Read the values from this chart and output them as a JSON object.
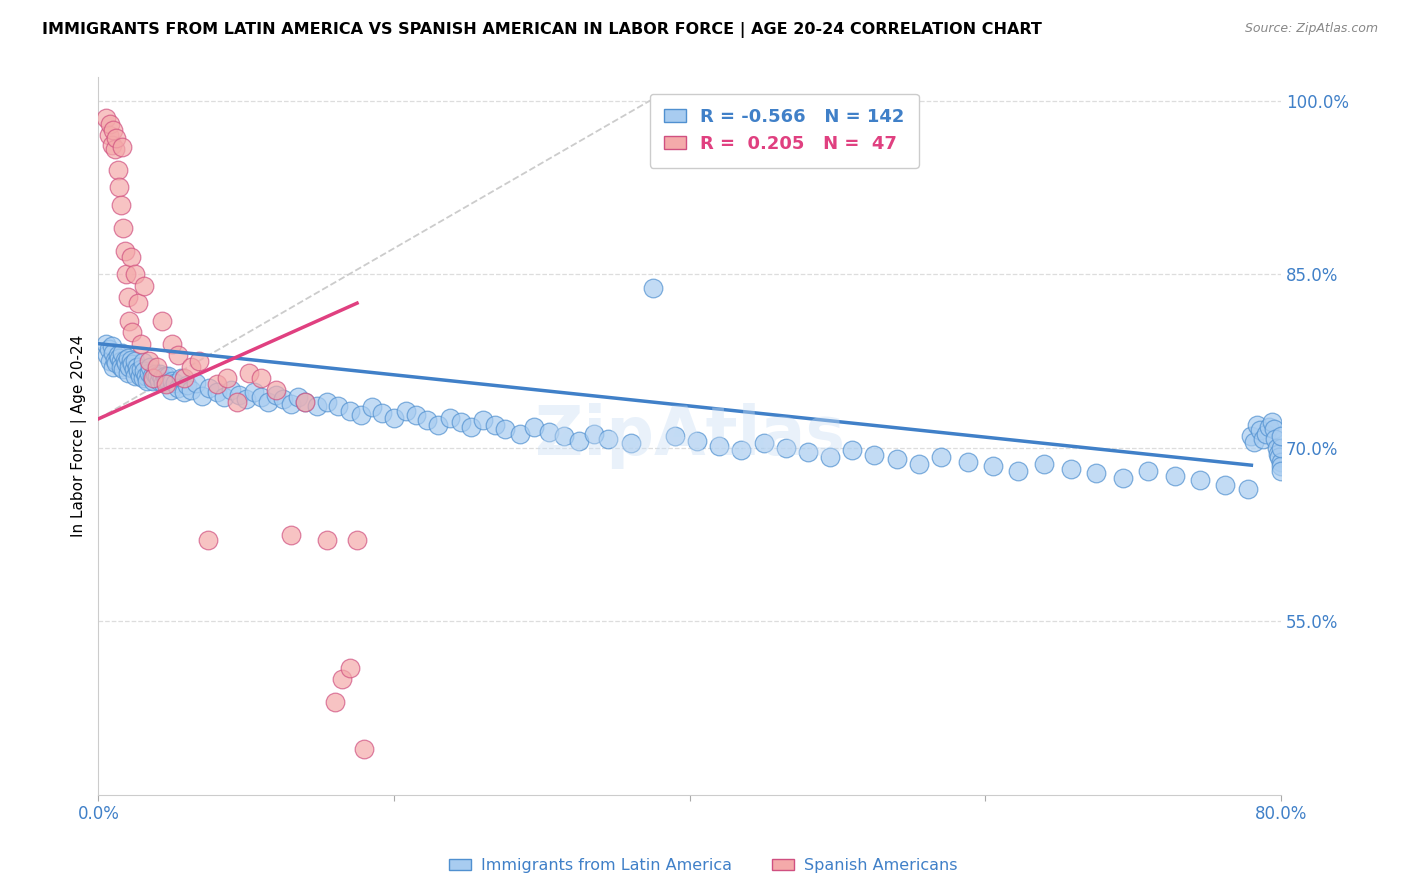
{
  "title": "IMMIGRANTS FROM LATIN AMERICA VS SPANISH AMERICAN IN LABOR FORCE | AGE 20-24 CORRELATION CHART",
  "source": "Source: ZipAtlas.com",
  "ylabel": "In Labor Force | Age 20-24",
  "xmin": 0.0,
  "xmax": 0.8,
  "ymin": 0.4,
  "ymax": 1.02,
  "yticks": [
    0.55,
    0.7,
    0.85,
    1.0
  ],
  "ytick_labels": [
    "55.0%",
    "70.0%",
    "85.0%",
    "100.0%"
  ],
  "xticks": [
    0.0,
    0.2,
    0.4,
    0.6,
    0.8
  ],
  "xtick_labels": [
    "0.0%",
    "",
    "",
    "",
    "80.0%"
  ],
  "legend_blue_r": "-0.566",
  "legend_blue_n": "142",
  "legend_pink_r": "0.205",
  "legend_pink_n": "47",
  "blue_color": "#A8CCF0",
  "pink_color": "#F4AAAA",
  "line_blue": "#4080C8",
  "line_pink": "#E04080",
  "blue_edge": "#5090D0",
  "pink_edge": "#D05080",
  "blue_regression": [
    0.0,
    0.78,
    0.79,
    0.685
  ],
  "pink_regression": [
    0.0,
    0.175,
    0.725,
    0.825
  ],
  "diag_line": [
    0.0,
    0.38,
    0.725,
    1.005
  ],
  "blue_x": [
    0.005,
    0.006,
    0.007,
    0.008,
    0.009,
    0.01,
    0.01,
    0.011,
    0.012,
    0.013,
    0.014,
    0.015,
    0.015,
    0.016,
    0.017,
    0.018,
    0.019,
    0.02,
    0.02,
    0.021,
    0.022,
    0.023,
    0.024,
    0.025,
    0.025,
    0.026,
    0.027,
    0.028,
    0.029,
    0.03,
    0.03,
    0.031,
    0.032,
    0.033,
    0.034,
    0.035,
    0.036,
    0.037,
    0.038,
    0.04,
    0.041,
    0.042,
    0.043,
    0.044,
    0.045,
    0.046,
    0.047,
    0.048,
    0.049,
    0.05,
    0.052,
    0.054,
    0.056,
    0.058,
    0.06,
    0.063,
    0.066,
    0.07,
    0.075,
    0.08,
    0.085,
    0.09,
    0.095,
    0.1,
    0.105,
    0.11,
    0.115,
    0.12,
    0.125,
    0.13,
    0.135,
    0.14,
    0.148,
    0.155,
    0.162,
    0.17,
    0.178,
    0.185,
    0.192,
    0.2,
    0.208,
    0.215,
    0.222,
    0.23,
    0.238,
    0.245,
    0.252,
    0.26,
    0.268,
    0.275,
    0.285,
    0.295,
    0.305,
    0.315,
    0.325,
    0.335,
    0.345,
    0.36,
    0.375,
    0.39,
    0.405,
    0.42,
    0.435,
    0.45,
    0.465,
    0.48,
    0.495,
    0.51,
    0.525,
    0.54,
    0.555,
    0.57,
    0.588,
    0.605,
    0.622,
    0.64,
    0.658,
    0.675,
    0.693,
    0.71,
    0.728,
    0.745,
    0.762,
    0.778,
    0.78,
    0.782,
    0.784,
    0.786,
    0.788,
    0.79,
    0.792,
    0.794,
    0.795,
    0.796,
    0.797,
    0.798,
    0.799,
    0.8,
    0.8,
    0.8,
    0.8,
    0.8
  ],
  "blue_y": [
    0.79,
    0.78,
    0.785,
    0.775,
    0.788,
    0.77,
    0.782,
    0.776,
    0.773,
    0.78,
    0.778,
    0.775,
    0.77,
    0.782,
    0.768,
    0.776,
    0.773,
    0.778,
    0.765,
    0.77,
    0.776,
    0.772,
    0.768,
    0.775,
    0.762,
    0.77,
    0.766,
    0.762,
    0.768,
    0.774,
    0.76,
    0.766,
    0.762,
    0.758,
    0.765,
    0.77,
    0.762,
    0.758,
    0.764,
    0.762,
    0.758,
    0.764,
    0.76,
    0.756,
    0.762,
    0.758,
    0.762,
    0.756,
    0.75,
    0.758,
    0.756,
    0.752,
    0.76,
    0.748,
    0.754,
    0.75,
    0.756,
    0.745,
    0.752,
    0.748,
    0.744,
    0.75,
    0.746,
    0.742,
    0.748,
    0.744,
    0.74,
    0.746,
    0.742,
    0.738,
    0.744,
    0.74,
    0.736,
    0.74,
    0.736,
    0.732,
    0.728,
    0.735,
    0.73,
    0.726,
    0.732,
    0.728,
    0.724,
    0.72,
    0.726,
    0.722,
    0.718,
    0.724,
    0.72,
    0.716,
    0.712,
    0.718,
    0.714,
    0.71,
    0.706,
    0.712,
    0.708,
    0.704,
    0.838,
    0.71,
    0.706,
    0.702,
    0.698,
    0.704,
    0.7,
    0.696,
    0.692,
    0.698,
    0.694,
    0.69,
    0.686,
    0.692,
    0.688,
    0.684,
    0.68,
    0.686,
    0.682,
    0.678,
    0.674,
    0.68,
    0.676,
    0.672,
    0.668,
    0.664,
    0.71,
    0.705,
    0.72,
    0.715,
    0.708,
    0.712,
    0.718,
    0.722,
    0.716,
    0.708,
    0.7,
    0.695,
    0.692,
    0.688,
    0.684,
    0.68,
    0.7,
    0.71
  ],
  "pink_x": [
    0.005,
    0.007,
    0.008,
    0.009,
    0.01,
    0.011,
    0.012,
    0.013,
    0.014,
    0.015,
    0.016,
    0.017,
    0.018,
    0.019,
    0.02,
    0.021,
    0.022,
    0.023,
    0.025,
    0.027,
    0.029,
    0.031,
    0.034,
    0.037,
    0.04,
    0.043,
    0.046,
    0.05,
    0.054,
    0.058,
    0.063,
    0.068,
    0.074,
    0.08,
    0.087,
    0.094,
    0.102,
    0.11,
    0.12,
    0.13,
    0.14,
    0.155,
    0.16,
    0.165,
    0.17,
    0.175,
    0.18
  ],
  "pink_y": [
    0.985,
    0.97,
    0.98,
    0.962,
    0.975,
    0.958,
    0.968,
    0.94,
    0.925,
    0.91,
    0.96,
    0.89,
    0.87,
    0.85,
    0.83,
    0.81,
    0.865,
    0.8,
    0.85,
    0.825,
    0.79,
    0.84,
    0.775,
    0.76,
    0.77,
    0.81,
    0.755,
    0.79,
    0.78,
    0.76,
    0.77,
    0.775,
    0.62,
    0.755,
    0.76,
    0.74,
    0.765,
    0.76,
    0.75,
    0.625,
    0.74,
    0.62,
    0.48,
    0.5,
    0.51,
    0.62,
    0.44
  ]
}
